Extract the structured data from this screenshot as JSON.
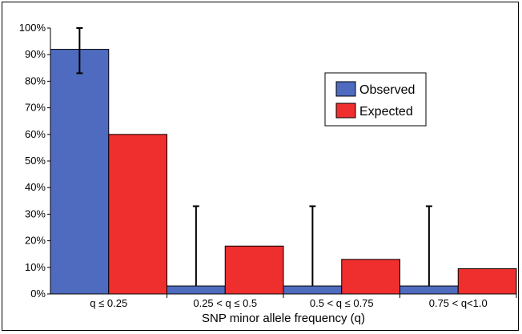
{
  "chart_data": {
    "type": "bar",
    "categories": [
      "q ≤ 0.25",
      "0.25 < q ≤ 0.5",
      "0.5 < q ≤ 0.75",
      "0.75 < q<1.0"
    ],
    "series": [
      {
        "name": "Observed",
        "values": [
          92,
          3,
          3,
          3
        ],
        "error_upper": [
          100,
          33,
          33,
          33
        ],
        "error_lower": [
          83,
          null,
          null,
          null
        ],
        "color": "#4f6bbf"
      },
      {
        "name": "Expected",
        "values": [
          60,
          18,
          13,
          9.5
        ],
        "color": "#ef2e2e"
      }
    ],
    "xlabel": "SNP minor allele frequency (q)",
    "ylabel": "",
    "ylim": [
      0,
      100
    ],
    "yticks": [
      "0%",
      "10%",
      "20%",
      "30%",
      "40%",
      "50%",
      "60%",
      "70%",
      "80%",
      "90%",
      "100%"
    ],
    "legend_position": "top-right",
    "grid": false
  }
}
